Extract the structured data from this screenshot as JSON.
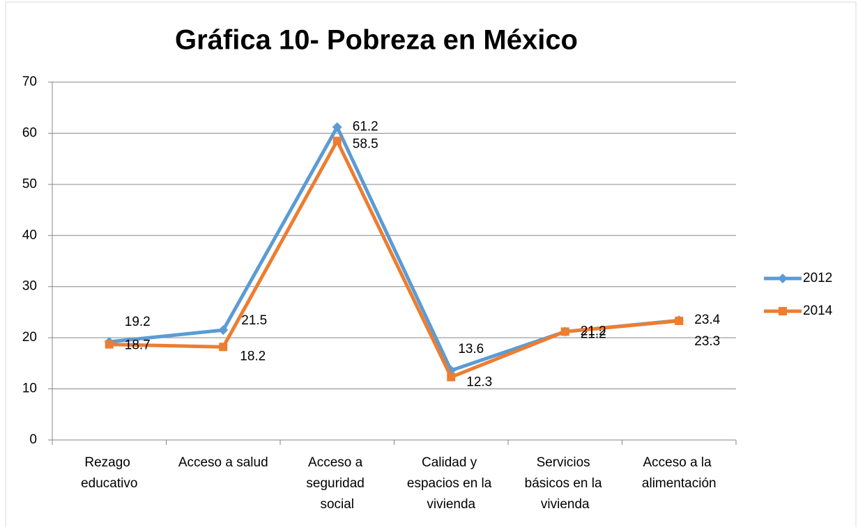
{
  "chart_data": {
    "type": "line",
    "title": "Gráfica 10- Pobreza en México",
    "categories": [
      "Rezago educativo",
      "Acceso a salud",
      "Acceso a seguridad social",
      "Calidad y espacios en la vivienda",
      "Servicios básicos en la vivienda",
      "Acceso a la alimentación"
    ],
    "series": [
      {
        "name": "2012",
        "color": "#5b9bd5",
        "marker": "diamond",
        "values": [
          19.2,
          21.5,
          61.2,
          13.6,
          21.2,
          23.4
        ]
      },
      {
        "name": "2014",
        "color": "#ed7d31",
        "marker": "square",
        "values": [
          18.7,
          18.2,
          58.5,
          12.3,
          21.2,
          23.3
        ]
      }
    ],
    "ylim": [
      0,
      70
    ],
    "yticks": [
      0,
      10,
      20,
      30,
      40,
      50,
      60,
      70
    ],
    "grid": true,
    "legend": "right"
  }
}
